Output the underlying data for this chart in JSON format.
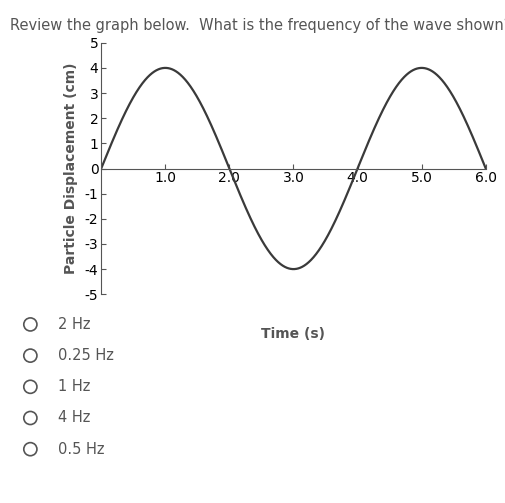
{
  "question": "Review the graph below.  What is the frequency of the wave shown?",
  "ylabel": "Particle Displacement (cm)",
  "xlabel": "Time (s)",
  "xlim": [
    0,
    6.0
  ],
  "ylim": [
    -5,
    5
  ],
  "xticks": [
    1.0,
    2.0,
    3.0,
    4.0,
    5.0,
    6.0
  ],
  "yticks": [
    -5,
    -4,
    -3,
    -2,
    -1,
    0,
    1,
    2,
    3,
    4,
    5
  ],
  "wave_amplitude": 4.0,
  "wave_period": 4.0,
  "wave_color": "#3a3a3a",
  "wave_linewidth": 1.6,
  "background_color": "#ffffff",
  "choices": [
    "2 Hz",
    "0.25 Hz",
    "1 Hz",
    "4 Hz",
    "0.5 Hz"
  ],
  "question_fontsize": 10.5,
  "axis_label_fontsize": 10,
  "tick_fontsize": 8.5,
  "choice_fontsize": 10.5,
  "text_color": "#555555"
}
